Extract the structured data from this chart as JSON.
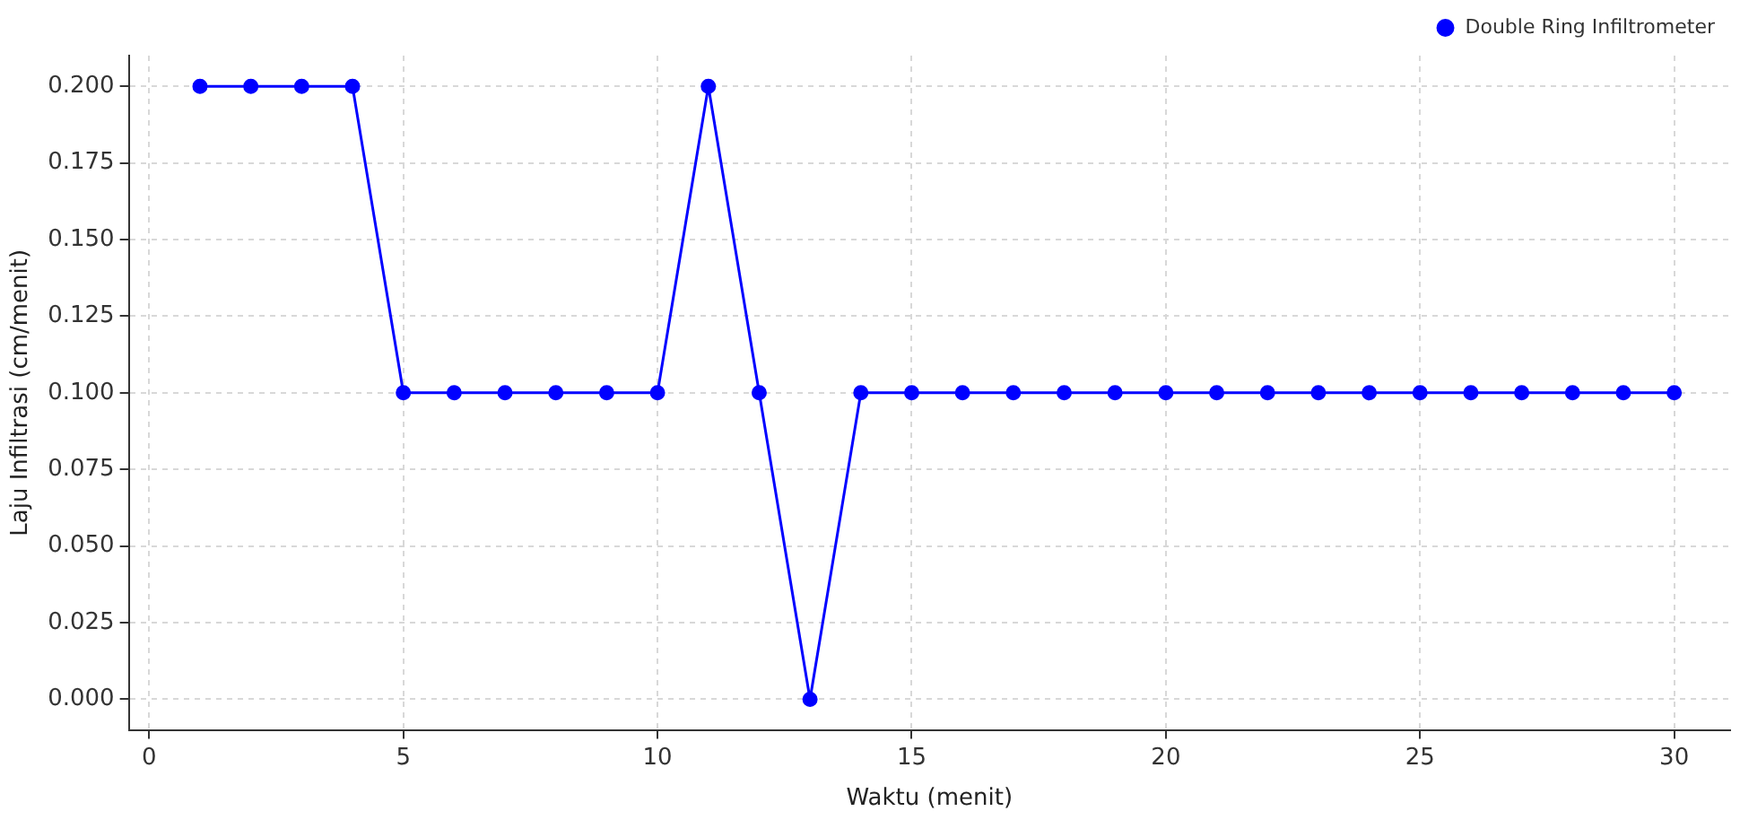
{
  "chart_data": {
    "type": "line",
    "xlabel": "Waktu (menit)",
    "ylabel": "Laju Infiltrasi (cm/menit)",
    "x": [
      1,
      2,
      3,
      4,
      5,
      6,
      7,
      8,
      9,
      10,
      11,
      12,
      13,
      14,
      15,
      16,
      17,
      18,
      19,
      20,
      21,
      22,
      23,
      24,
      25,
      26,
      27,
      28,
      29,
      30
    ],
    "series": [
      {
        "name": "Double Ring Infiltrometer",
        "color": "#0000ff",
        "values": [
          0.2,
          0.2,
          0.2,
          0.2,
          0.1,
          0.1,
          0.1,
          0.1,
          0.1,
          0.1,
          0.2,
          0.1,
          0,
          0.1,
          0.1,
          0.1,
          0.1,
          0.1,
          0.1,
          0.1,
          0.1,
          0.1,
          0.1,
          0.1,
          0.1,
          0.1,
          0.1,
          0.1,
          0.1,
          0.1
        ]
      }
    ],
    "xlim": [
      -0.4,
      31.1
    ],
    "xticks": [
      0,
      5,
      10,
      15,
      20,
      25,
      30
    ],
    "ylim": [
      -0.01,
      0.21
    ],
    "yticks": [
      {
        "value": 0,
        "label": "0.000"
      },
      {
        "value": 0.025,
        "label": "0.025"
      },
      {
        "value": 0.05,
        "label": "0.050"
      },
      {
        "value": 0.075,
        "label": "0.075"
      },
      {
        "value": 0.1,
        "label": "0.100"
      },
      {
        "value": 0.125,
        "label": "0.125"
      },
      {
        "value": 0.15,
        "label": "0.150"
      },
      {
        "value": 0.175,
        "label": "0.175"
      },
      {
        "value": 0.2,
        "label": "0.200"
      }
    ],
    "grid": true,
    "legend": "top right",
    "marker": "circle",
    "line_style": "solid"
  }
}
